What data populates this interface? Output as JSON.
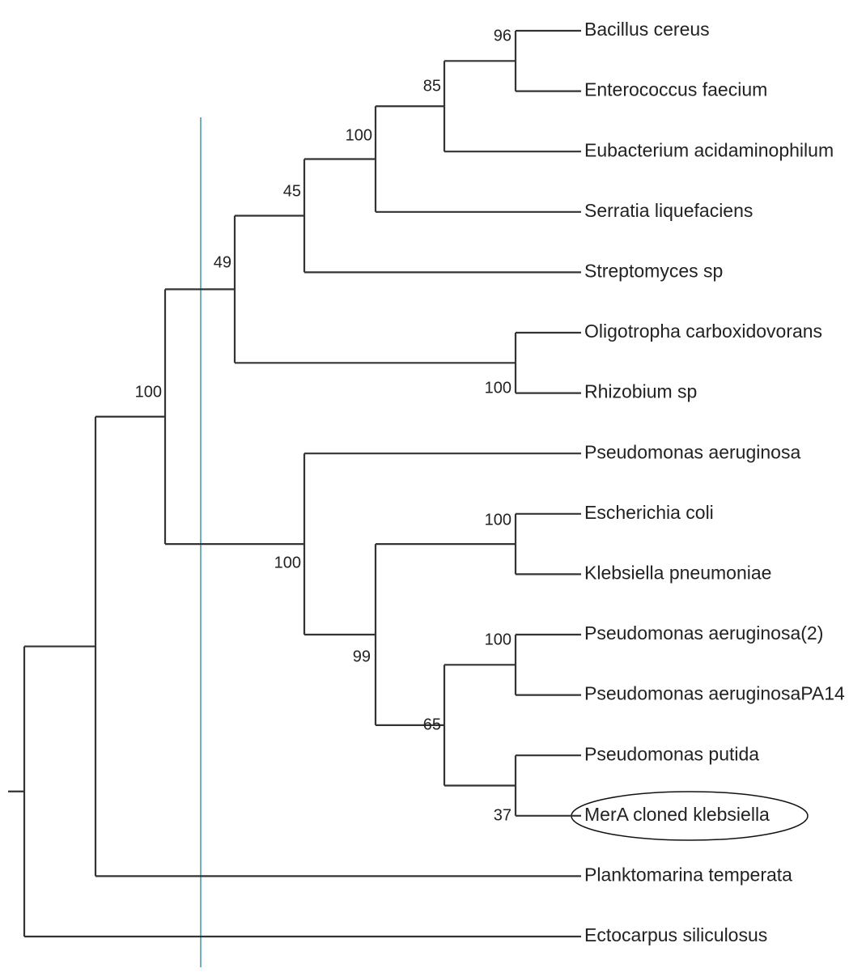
{
  "leaves": [
    {
      "label": "Bacillus cereus"
    },
    {
      "label": "Enterococcus faecium"
    },
    {
      "label": "Eubacterium acidaminophilum"
    },
    {
      "label": "Serratia liquefaciens"
    },
    {
      "label": "Streptomyces sp"
    },
    {
      "label": "Oligotropha carboxidovorans"
    },
    {
      "label": "Rhizobium sp"
    },
    {
      "label": "Pseudomonas aeruginosa"
    },
    {
      "label": "Escherichia coli"
    },
    {
      "label": "Klebsiella pneumoniae"
    },
    {
      "label": "Pseudomonas aeruginosa(2)"
    },
    {
      "label": "Pseudomonas aeruginosaPA14"
    },
    {
      "label": "Pseudomonas putida"
    },
    {
      "label": "MerA cloned klebsiella"
    },
    {
      "label": "Planktomarina temperata"
    },
    {
      "label": "Ectocarpus siliculosus"
    }
  ],
  "bootstrap": [
    96,
    85,
    100,
    45,
    49,
    100,
    100,
    100,
    100,
    99,
    100,
    65,
    37
  ]
}
